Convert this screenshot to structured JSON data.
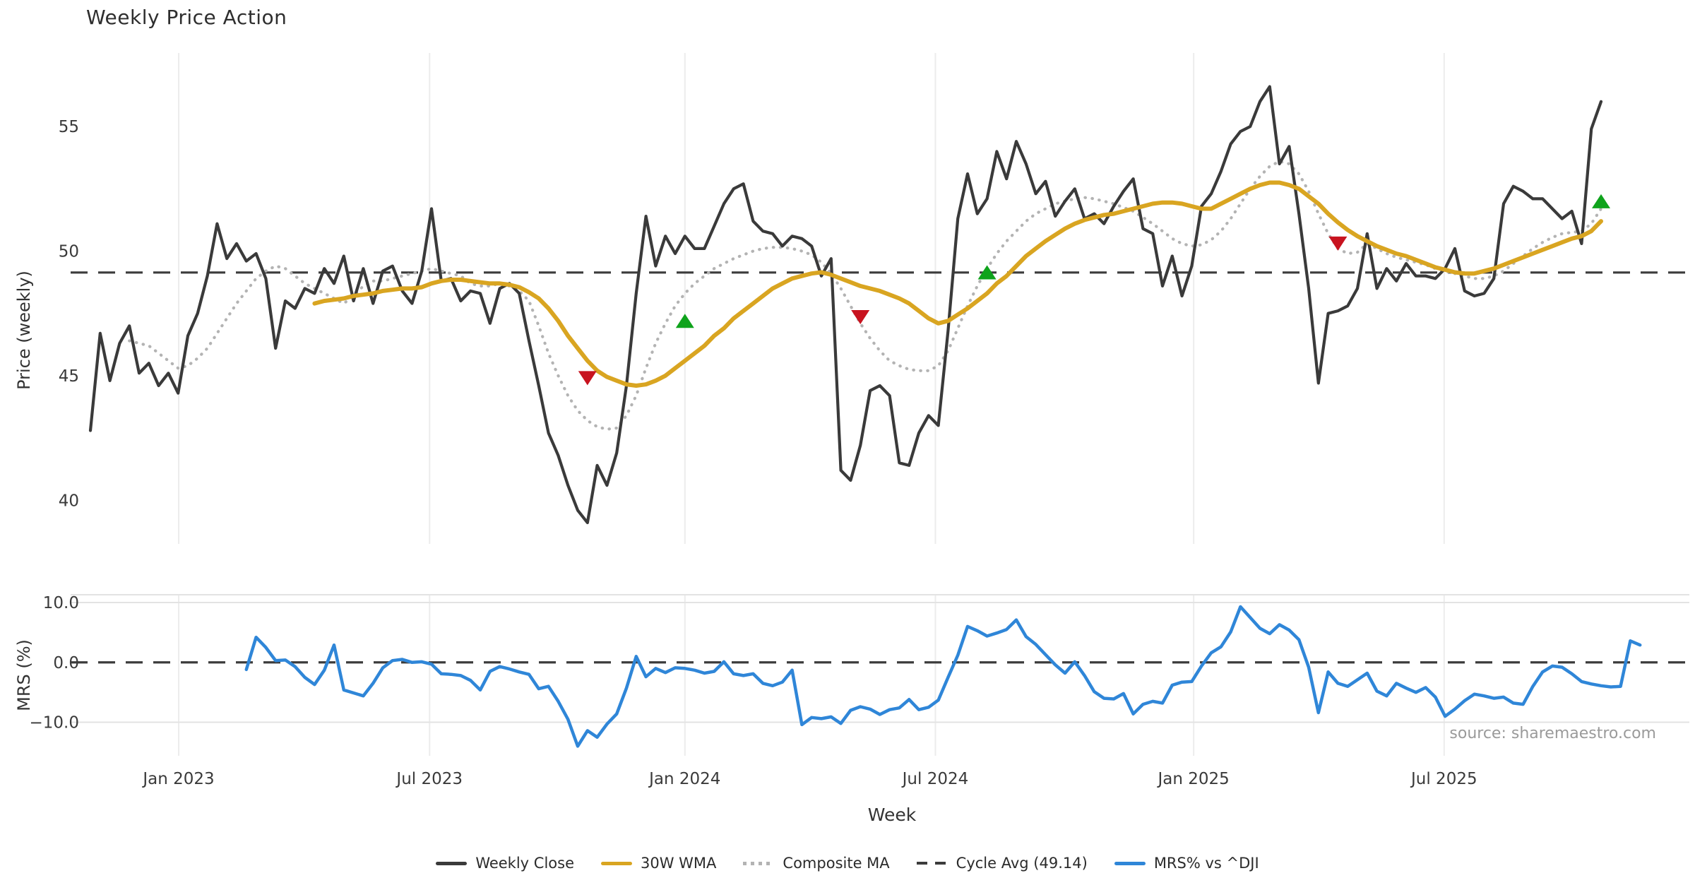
{
  "title": "Weekly Price Action",
  "xlabel": "Week",
  "source_note": "source: sharemaestro.com",
  "colors": {
    "close": "#3a3a3a",
    "wma": "#d9a521",
    "composite": "#b3b3b3",
    "cycle": "#3c3c3c",
    "mrs": "#2f86d8",
    "buy": "#0fa31c",
    "sell": "#c8131f",
    "grid": "#ececec",
    "grid_soft": "#e3e3e3",
    "tick_text": "#3a3a3a",
    "source_text": "#9a9a9a"
  },
  "legend": [
    {
      "label": "Weekly Close",
      "style": "solid",
      "color": "#3a3a3a"
    },
    {
      "label": "30W WMA",
      "style": "solid",
      "color": "#d9a521"
    },
    {
      "label": "Composite MA",
      "style": "dotted",
      "color": "#b3b3b3"
    },
    {
      "label": "Cycle Avg (49.14)",
      "style": "dashed",
      "color": "#3c3c3c"
    },
    {
      "label": "MRS% vs ^DJI",
      "style": "solid",
      "color": "#2f86d8"
    }
  ],
  "chart_data": {
    "type": "line",
    "title": "Weekly Price Action",
    "xlabel": "Week",
    "x_is_weekly_index": true,
    "n_weeks": 160,
    "x_ticks": [
      {
        "i": 9.06,
        "label": "Jan 2023"
      },
      {
        "i": 34.8,
        "label": "Jul 2023"
      },
      {
        "i": 61.0,
        "label": "Jan 2024"
      },
      {
        "i": 86.7,
        "label": "Jul 2024"
      },
      {
        "i": 113.2,
        "label": "Jan 2025"
      },
      {
        "i": 138.9,
        "label": "Jul 2025"
      }
    ],
    "panels": [
      {
        "name": "price",
        "ylabel": "Price (weekly)",
        "ylim": [
          38.25,
          57.95
        ],
        "yticks": [
          {
            "v": 40,
            "label": "40"
          },
          {
            "v": 45,
            "label": "45"
          },
          {
            "v": 50,
            "label": "50"
          },
          {
            "v": 55,
            "label": "55"
          }
        ],
        "cycle_avg": 49.14,
        "series": [
          {
            "name": "Composite MA",
            "key": "composite",
            "color": "#b3b3b3",
            "width": 4.2,
            "dash": "dot",
            "values": [
              null,
              null,
              null,
              null,
              46.4,
              46.3,
              46.2,
              45.9,
              45.6,
              45.3,
              45.4,
              45.7,
              46.1,
              46.7,
              47.3,
              47.9,
              48.4,
              48.9,
              49.2,
              49.4,
              49.3,
              49.0,
              48.7,
              48.5,
              48.3,
              48.1,
              47.9,
              48.2,
              48.6,
              48.8,
              48.8,
              48.9,
              49.0,
              49.1,
              49.2,
              49.3,
              49.2,
              49.1,
              49.0,
              48.7,
              48.6,
              48.6,
              48.7,
              48.6,
              48.4,
              48.0,
              47.0,
              45.9,
              45.0,
              44.2,
              43.6,
              43.2,
              42.95,
              42.85,
              42.9,
              43.4,
              44.2,
              45.3,
              46.3,
              47.1,
              47.8,
              48.3,
              48.7,
              49.0,
              49.3,
              49.5,
              49.7,
              49.85,
              50.0,
              50.1,
              50.15,
              50.15,
              50.1,
              50.0,
              49.85,
              49.55,
              49.1,
              48.5,
              47.8,
              47.1,
              46.5,
              46.0,
              45.6,
              45.4,
              45.25,
              45.2,
              45.2,
              45.4,
              46.0,
              46.9,
              47.8,
              48.6,
              49.3,
              49.9,
              50.4,
              50.8,
              51.2,
              51.5,
              51.7,
              51.9,
              52.0,
              52.1,
              52.15,
              52.1,
              52.0,
              51.9,
              51.75,
              51.6,
              51.35,
              51.1,
              50.8,
              50.5,
              50.3,
              50.2,
              50.25,
              50.45,
              50.8,
              51.3,
              51.9,
              52.5,
              53.0,
              53.4,
              53.6,
              53.5,
              53.1,
              52.4,
              51.5,
              50.7,
              50.1,
              49.9,
              49.95,
              50.3,
              50.1,
              49.9,
              49.75,
              49.65,
              49.55,
              49.45,
              49.3,
              49.2,
              49.1,
              49.0,
              48.9,
              48.9,
              49.0,
              49.2,
              49.5,
              49.8,
              50.1,
              50.35,
              50.55,
              50.7,
              50.75,
              50.8,
              51.1,
              51.7
            ]
          },
          {
            "name": "Weekly Close",
            "key": "close",
            "color": "#3a3a3a",
            "width": 4.2,
            "dash": null,
            "values": [
              42.8,
              46.7,
              44.8,
              46.3,
              47.0,
              45.1,
              45.5,
              44.6,
              45.1,
              44.3,
              46.6,
              47.5,
              49.0,
              51.1,
              49.7,
              50.3,
              49.6,
              49.9,
              48.9,
              46.1,
              48.0,
              47.7,
              48.5,
              48.3,
              49.3,
              48.7,
              49.8,
              48.0,
              49.3,
              47.9,
              49.2,
              49.4,
              48.4,
              47.9,
              49.2,
              51.7,
              48.8,
              48.9,
              48.0,
              48.4,
              48.3,
              47.1,
              48.5,
              48.7,
              48.3,
              46.4,
              44.6,
              42.7,
              41.8,
              40.6,
              39.6,
              39.1,
              41.4,
              40.6,
              41.9,
              44.6,
              48.3,
              51.4,
              49.4,
              50.6,
              49.9,
              50.6,
              50.1,
              50.1,
              51.0,
              51.9,
              52.5,
              52.7,
              51.2,
              50.8,
              50.7,
              50.2,
              50.6,
              50.5,
              50.2,
              49.0,
              49.7,
              41.2,
              40.8,
              42.2,
              44.4,
              44.6,
              44.2,
              41.5,
              41.4,
              42.7,
              43.4,
              43.0,
              46.8,
              51.3,
              53.1,
              51.5,
              52.1,
              54.0,
              52.9,
              54.4,
              53.5,
              52.3,
              52.8,
              51.4,
              52.0,
              52.5,
              51.3,
              51.5,
              51.1,
              51.8,
              52.4,
              52.9,
              50.9,
              50.7,
              48.6,
              49.8,
              48.2,
              49.4,
              51.8,
              52.3,
              53.2,
              54.3,
              54.8,
              55.0,
              56.0,
              56.6,
              53.5,
              54.2,
              51.5,
              48.5,
              44.7,
              47.5,
              47.6,
              47.8,
              48.5,
              50.7,
              48.5,
              49.3,
              48.8,
              49.5,
              49.0,
              49.0,
              48.9,
              49.3,
              50.1,
              48.4,
              48.2,
              48.3,
              48.9,
              51.9,
              52.6,
              52.4,
              52.1,
              52.1,
              51.7,
              51.3,
              51.6,
              50.3,
              54.9,
              56.0
            ]
          },
          {
            "name": "30W WMA",
            "key": "wma",
            "color": "#d9a521",
            "width": 6,
            "dash": null,
            "values": [
              null,
              null,
              null,
              null,
              null,
              null,
              null,
              null,
              null,
              null,
              null,
              null,
              null,
              null,
              null,
              null,
              null,
              null,
              null,
              null,
              null,
              null,
              null,
              47.9,
              48.0,
              48.05,
              48.1,
              48.2,
              48.25,
              48.3,
              48.4,
              48.45,
              48.5,
              48.5,
              48.55,
              48.7,
              48.8,
              48.85,
              48.85,
              48.8,
              48.75,
              48.7,
              48.7,
              48.65,
              48.55,
              48.35,
              48.1,
              47.7,
              47.2,
              46.6,
              46.1,
              45.6,
              45.2,
              44.95,
              44.8,
              44.65,
              44.6,
              44.65,
              44.8,
              45.0,
              45.3,
              45.6,
              45.9,
              46.2,
              46.6,
              46.9,
              47.3,
              47.6,
              47.9,
              48.2,
              48.5,
              48.7,
              48.9,
              49.0,
              49.1,
              49.15,
              49.05,
              48.9,
              48.75,
              48.6,
              48.5,
              48.4,
              48.25,
              48.1,
              47.9,
              47.6,
              47.3,
              47.1,
              47.2,
              47.45,
              47.7,
              48.0,
              48.3,
              48.7,
              49.0,
              49.4,
              49.8,
              50.1,
              50.4,
              50.65,
              50.9,
              51.1,
              51.25,
              51.35,
              51.45,
              51.5,
              51.6,
              51.7,
              51.8,
              51.9,
              51.95,
              51.95,
              51.9,
              51.8,
              51.7,
              51.7,
              51.9,
              52.1,
              52.3,
              52.5,
              52.65,
              52.75,
              52.75,
              52.65,
              52.5,
              52.2,
              51.9,
              51.5,
              51.15,
              50.85,
              50.6,
              50.4,
              50.2,
              50.05,
              49.9,
              49.8,
              49.65,
              49.5,
              49.35,
              49.25,
              49.15,
              49.1,
              49.1,
              49.2,
              49.3,
              49.45,
              49.6,
              49.75,
              49.9,
              50.05,
              50.2,
              50.35,
              50.5,
              50.6,
              50.8,
              51.2
            ]
          }
        ],
        "markers": {
          "up": {
            "color": "#0fa31c",
            "points": [
              {
                "i": 61,
                "v": 47.2
              },
              {
                "i": 92,
                "v": 49.15
              },
              {
                "i": 155,
                "v": 52.0
              }
            ]
          },
          "down": {
            "color": "#c8131f",
            "points": [
              {
                "i": 51,
                "v": 44.9
              },
              {
                "i": 79,
                "v": 47.35
              },
              {
                "i": 128,
                "v": 50.3
              }
            ]
          }
        }
      },
      {
        "name": "mrs",
        "ylabel": "MRS (%)",
        "ylim": [
          -15.6,
          11.3
        ],
        "yticks": [
          {
            "v": 10,
            "label": "10.0"
          },
          {
            "v": 0,
            "label": "0.0"
          },
          {
            "v": -10,
            "label": "−10.0"
          }
        ],
        "zero_line": 0,
        "h_gridlines": [
          10,
          -10
        ],
        "series": [
          {
            "name": "MRS% vs ^DJI",
            "key": "mrs",
            "color": "#2f86d8",
            "width": 4.5,
            "dash": null,
            "values": [
              null,
              null,
              null,
              null,
              null,
              null,
              null,
              null,
              null,
              null,
              null,
              null,
              null,
              null,
              null,
              null,
              -1.2,
              4.2,
              2.5,
              0.3,
              0.4,
              -0.7,
              -2.5,
              -3.7,
              -1.3,
              2.9,
              -4.6,
              -5.1,
              -5.6,
              -3.5,
              -0.9,
              0.3,
              0.5,
              0.0,
              0.1,
              -0.3,
              -1.9,
              -2.0,
              -2.2,
              -3.0,
              -4.6,
              -1.5,
              -0.7,
              -1.1,
              -1.6,
              -2.0,
              -4.4,
              -4.0,
              -6.5,
              -9.5,
              -14.0,
              -11.4,
              -12.5,
              -10.3,
              -8.6,
              -4.3,
              1.0,
              -2.4,
              -1.0,
              -1.7,
              -0.9,
              -1.0,
              -1.3,
              -1.8,
              -1.5,
              0.1,
              -1.9,
              -2.2,
              -1.9,
              -3.5,
              -3.9,
              -3.3,
              -1.3,
              -10.4,
              -9.2,
              -9.4,
              -9.1,
              -10.2,
              -8.0,
              -7.4,
              -7.8,
              -8.7,
              -7.9,
              -7.6,
              -6.2,
              -7.9,
              -7.5,
              -6.3,
              -2.5,
              1.2,
              6.0,
              5.3,
              4.4,
              4.9,
              5.5,
              7.1,
              4.3,
              3.0,
              1.3,
              -0.4,
              -1.8,
              0.1,
              -2.2,
              -4.9,
              -6.0,
              -6.1,
              -5.2,
              -8.6,
              -7.0,
              -6.5,
              -6.8,
              -3.8,
              -3.3,
              -3.2,
              -0.6,
              1.6,
              2.6,
              5.1,
              9.3,
              7.5,
              5.7,
              4.8,
              6.3,
              5.4,
              3.8,
              -0.8,
              -8.4,
              -1.6,
              -3.5,
              -4.0,
              -2.9,
              -1.8,
              -4.8,
              -5.6,
              -3.5,
              -4.3,
              -5.0,
              -4.2,
              -5.8,
              -9.0,
              -7.8,
              -6.4,
              -5.3,
              -5.6,
              -6.0,
              -5.8,
              -6.8,
              -7.0,
              -4.0,
              -1.6,
              -0.6,
              -0.8,
              -1.9,
              -3.2,
              -3.6,
              -3.9,
              -4.1,
              -4.0,
              3.6,
              2.9
            ]
          }
        ]
      }
    ]
  }
}
